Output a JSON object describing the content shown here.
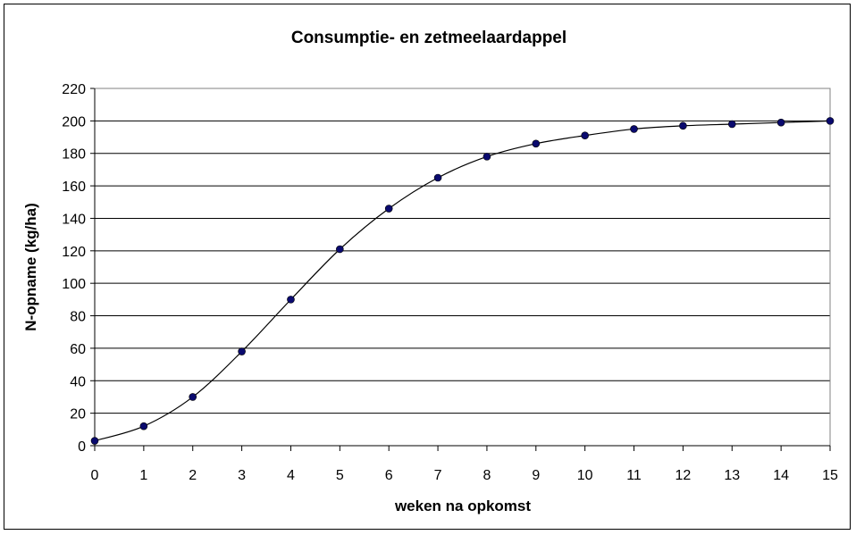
{
  "chart_data": {
    "type": "line",
    "title": "Consumptie- en zetmeelaardappel",
    "xlabel": "weken na opkomst",
    "ylabel": "N-opname (kg/ha)",
    "xlim": [
      0,
      15
    ],
    "ylim": [
      0,
      220
    ],
    "x_ticks": [
      "0",
      "1",
      "2",
      "3",
      "4",
      "5",
      "6",
      "7",
      "8",
      "9",
      "10",
      "11",
      "12",
      "13",
      "14",
      "15"
    ],
    "y_ticks": [
      "0",
      "20",
      "40",
      "60",
      "80",
      "100",
      "120",
      "140",
      "160",
      "180",
      "200",
      "220"
    ],
    "grid": "horizontal",
    "smoothed": true,
    "marker": "circle",
    "colors": {
      "marker": "#0a0a6e",
      "line": "#000000"
    },
    "x": [
      0,
      1,
      2,
      3,
      4,
      5,
      6,
      7,
      8,
      9,
      10,
      11,
      12,
      13,
      14,
      15
    ],
    "values": [
      3,
      12,
      30,
      58,
      90,
      121,
      146,
      165,
      178,
      186,
      191,
      195,
      197,
      198,
      199,
      200
    ]
  }
}
